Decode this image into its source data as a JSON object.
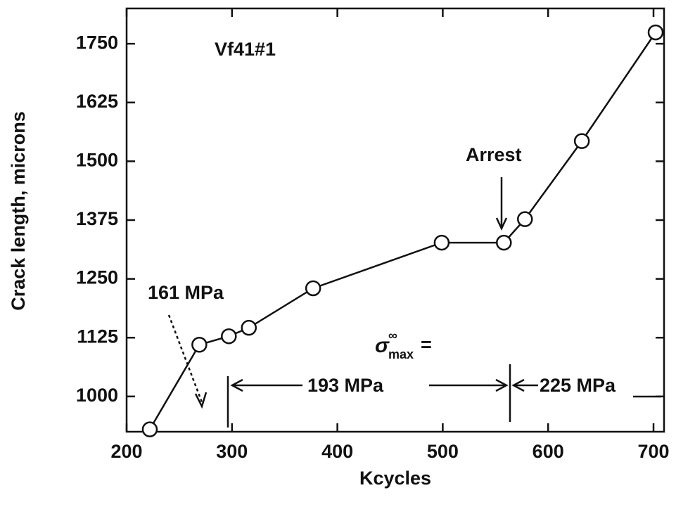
{
  "chart_data": {
    "type": "line",
    "x_label": "Kcycles",
    "y_label": "Crack length, microns",
    "x": [
      222,
      269,
      297,
      316,
      377,
      499,
      558,
      578,
      632,
      702
    ],
    "series": [
      {
        "name": "Vf41#1",
        "color": "#111111",
        "values": [
          930,
          1110,
          1128,
          1146,
          1230,
          1327,
          1327,
          1377,
          1543,
          1774
        ]
      }
    ],
    "xlim": [
      200,
      710
    ],
    "xticks": [
      200,
      300,
      400,
      500,
      600,
      700
    ],
    "ylim": [
      925,
      1825
    ],
    "yticks": [
      1000,
      1125,
      1250,
      1375,
      1500,
      1625,
      1750
    ],
    "annotations": {
      "stress1": "161 MPa",
      "arrest": "Arrest",
      "sigma": "σ",
      "sigma_sup": "∞",
      "sigma_sub": "max",
      "equals": "=",
      "stress2": "193 MPa",
      "stress3": "225 MPa"
    }
  }
}
